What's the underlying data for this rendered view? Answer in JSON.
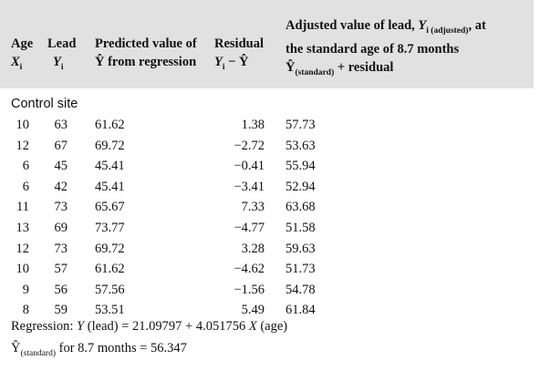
{
  "header": {
    "age": {
      "line1": "Age",
      "var": "X",
      "sub": "i"
    },
    "lead": {
      "line1": "Lead",
      "var": "Y",
      "sub": "i"
    },
    "pred": {
      "line1": "Predicted value of",
      "line2": "Ŷ from regression"
    },
    "resid": {
      "line1": "Residual",
      "line2": "Y",
      "sub": "i",
      "line2b": " − Ŷ"
    },
    "adj": {
      "line1a": "Adjusted value of lead, ",
      "line1var": "Y",
      "line1sub": "i (adjusted)",
      "line1b": ", at",
      "line2": "the standard age of 8.7 months",
      "line3var": "Ŷ",
      "line3sub": "(standard)",
      "line3b": " + residual"
    }
  },
  "section_label": "Control site",
  "rows": [
    {
      "age": "10",
      "lead": "63",
      "pred": "61.62",
      "resid": "1.38",
      "adj": "57.73"
    },
    {
      "age": "12",
      "lead": "67",
      "pred": "69.72",
      "resid": "−2.72",
      "adj": "53.63"
    },
    {
      "age": "6",
      "lead": "45",
      "pred": "45.41",
      "resid": "−0.41",
      "adj": "55.94"
    },
    {
      "age": "6",
      "lead": "42",
      "pred": "45.41",
      "resid": "−3.41",
      "adj": "52.94"
    },
    {
      "age": "11",
      "lead": "73",
      "pred": "65.67",
      "resid": "7.33",
      "adj": "63.68"
    },
    {
      "age": "13",
      "lead": "69",
      "pred": "73.77",
      "resid": "−4.77",
      "adj": "51.58"
    },
    {
      "age": "12",
      "lead": "73",
      "pred": "69.72",
      "resid": "3.28",
      "adj": "59.63"
    },
    {
      "age": "10",
      "lead": "57",
      "pred": "61.62",
      "resid": "−4.62",
      "adj": "51.73"
    },
    {
      "age": "9",
      "lead": "56",
      "pred": "57.56",
      "resid": "−1.56",
      "adj": "54.78"
    },
    {
      "age": "8",
      "lead": "59",
      "pred": "53.51",
      "resid": "5.49",
      "adj": "61.84"
    }
  ],
  "footer": {
    "regression_prefix": "Regression: ",
    "regression_y": "Y",
    "regression_mid": " (lead) = 21.09797 + 4.051756 ",
    "regression_x": "X",
    "regression_end": " (age)",
    "standard_var": "Ŷ",
    "standard_sub": "(standard)",
    "standard_text": " for 8.7 months = 56.347"
  }
}
